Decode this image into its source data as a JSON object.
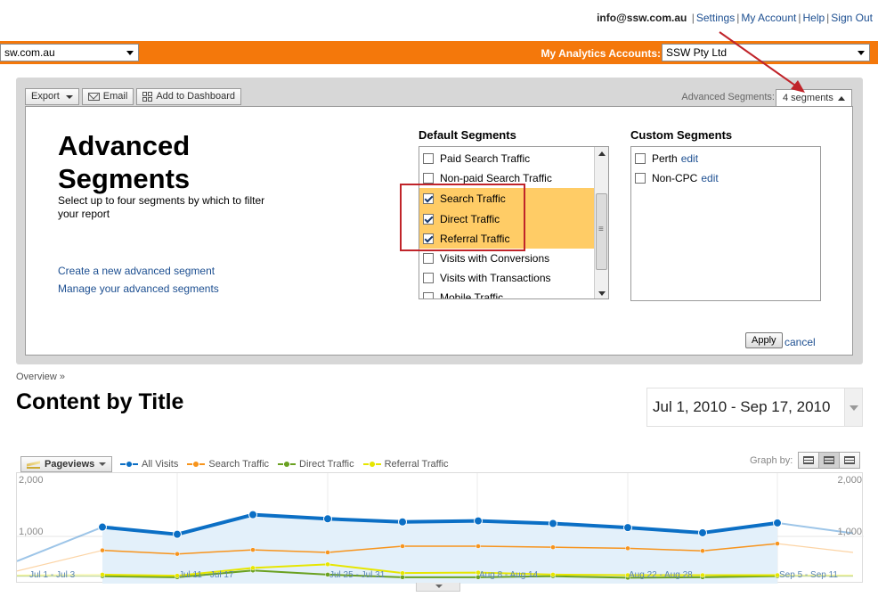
{
  "top_links": {
    "email": "info@ssw.com.au",
    "items": [
      "Settings",
      "My Account",
      "Help",
      "Sign Out"
    ]
  },
  "header": {
    "profile_value": "sw.com.au",
    "accounts_label": "My Analytics Accounts:",
    "accounts_value": "SSW Pty Ltd"
  },
  "toolbar": {
    "export_label": "Export",
    "email_label": "Email",
    "dashboard_label": "Add to Dashboard",
    "advanced_segments_label": "Advanced Segments:",
    "segments_count": "4 segments"
  },
  "segments": {
    "title_line1": "Advanced",
    "title_line2": "Segments",
    "description": "Select up to four segments by which to filter your report",
    "create_link": "Create a new advanced segment",
    "manage_link": "Manage your advanced segments",
    "default_heading": "Default Segments",
    "default_items": [
      {
        "label": "Paid Search Traffic",
        "checked": false
      },
      {
        "label": "Non-paid Search Traffic",
        "checked": false
      },
      {
        "label": "Search Traffic",
        "checked": true
      },
      {
        "label": "Direct Traffic",
        "checked": true
      },
      {
        "label": "Referral Traffic",
        "checked": true
      },
      {
        "label": "Visits with Conversions",
        "checked": false
      },
      {
        "label": "Visits with Transactions",
        "checked": false
      },
      {
        "label": "Mobile Traffic",
        "checked": false
      }
    ],
    "custom_heading": "Custom Segments",
    "custom_items": [
      {
        "label": "Perth",
        "edit": "edit",
        "checked": false
      },
      {
        "label": "Non-CPC",
        "edit": "edit",
        "checked": false
      }
    ],
    "apply_label": "Apply",
    "cancel_label": "cancel"
  },
  "report": {
    "breadcrumb": "Overview »",
    "title": "Content by Title",
    "date_range": "Jul 1, 2010 - Sep 17, 2010"
  },
  "chart_controls": {
    "metric": "Pageviews",
    "graph_by_label": "Graph by:"
  },
  "chart_data": {
    "type": "line",
    "y_left_labels": [
      "2,000",
      "1,000"
    ],
    "y_right_labels": [
      "2,000",
      "1,000"
    ],
    "ylim": [
      0,
      2000
    ],
    "x_labels": [
      "Jul 1 - Jul 3",
      "Jul 11 - Jul 17",
      "Jul 25 - Jul 31",
      "Aug 8 - Aug 14",
      "Aug 22 - Aug 28",
      "Sep 5 - Sep 11"
    ],
    "x": [
      "Jun 27 - Jul 3",
      "Jul 4 - Jul 10",
      "Jul 11 - Jul 17",
      "Jul 18 - Jul 24",
      "Jul 25 - Jul 31",
      "Aug 1 - Aug 7",
      "Aug 8 - Aug 14",
      "Aug 15 - Aug 21",
      "Aug 22 - Aug 28",
      "Aug 29 - Sep 4",
      "Sep 5 - Sep 11",
      "Sep 12 - Sep 17"
    ],
    "grid": true,
    "series": [
      {
        "name": "All Visits",
        "color": "#0b6fc5",
        "values": [
          520,
          1180,
          1040,
          1420,
          1340,
          1280,
          1300,
          1250,
          1170,
          1070,
          1260,
          1060
        ]
      },
      {
        "name": "Search Traffic",
        "color": "#f7941d",
        "values": [
          330,
          730,
          660,
          740,
          690,
          810,
          810,
          790,
          770,
          720,
          860,
          690
        ]
      },
      {
        "name": "Direct Traffic",
        "color": "#6aa121",
        "values": [
          230,
          230,
          210,
          340,
          260,
          210,
          210,
          230,
          200,
          210,
          230,
          230
        ]
      },
      {
        "name": "Referral Traffic",
        "color": "#e6e600",
        "values": [
          250,
          260,
          240,
          390,
          460,
          290,
          300,
          260,
          250,
          250,
          250,
          250
        ]
      }
    ]
  },
  "colors": {
    "orange_bar": "#f4780b",
    "link": "#1d4f91",
    "highlight": "#ffcc66",
    "annotation_red": "#c0242a"
  }
}
